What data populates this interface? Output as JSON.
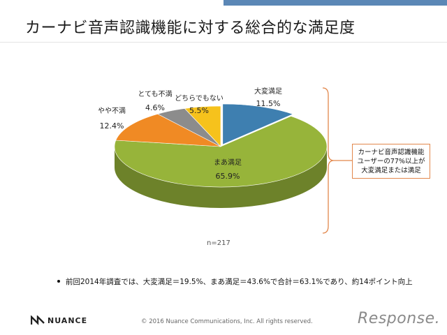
{
  "header": {
    "title": "カーナビ音声認識機能に対する総合的な満足度"
  },
  "chart_data": {
    "type": "pie",
    "title": "カーナビ音声認識機能に対する総合的な満足度",
    "unit": "%",
    "slices": [
      {
        "label": "大変満足",
        "value": 11.5,
        "value_label": "11.5%",
        "color": "#3e7fb0"
      },
      {
        "label": "まあ満足",
        "value": 65.9,
        "value_label": "65.9%",
        "color": "#97b43a"
      },
      {
        "label": "やや不満",
        "value": 12.4,
        "value_label": "12.4%",
        "color": "#f08a24"
      },
      {
        "label": "とても不満",
        "value": 4.6,
        "value_label": "4.6%",
        "color": "#8c8c8c"
      },
      {
        "label": "どちらでもない",
        "value": 5.5,
        "value_label": "5.5%",
        "color": "#f6c21c"
      }
    ],
    "sample_size": "n=217",
    "annotation_lines": [
      "カーナビ音声認識機能",
      "ユーザーの77%以上が",
      "大変満足または満足"
    ]
  },
  "footer": {
    "note": "前回2014年調査では、大変満足＝19.5%、まあ満足＝43.6%で合計＝63.1%であり、約14ポイント向上",
    "brand": "NUANCE",
    "copyright": "© 2016 Nuance Communications, Inc. All rights reserved.",
    "watermark": "Response."
  }
}
